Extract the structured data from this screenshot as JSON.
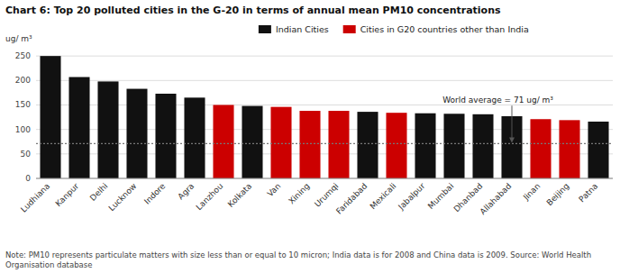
{
  "chart_data": {
    "type": "bar",
    "title": "Chart 6: Top 20 polluted cities in the G-20 in terms of annual mean PM10 concentrations",
    "y_label": "ug/ m³",
    "note": "Note: PM10 represents particulate matters with size less than or equal to 10 micron; India data is for 2008 and China data is 2009. Source: World Health Organisation database",
    "categories": [
      "Ludhiana",
      "Kanpur",
      "Delhi",
      "Lucknow",
      "Indore",
      "Agra",
      "Lanzhou",
      "Kolkata",
      "Van",
      "Xining",
      "Urumqi",
      "Faridabad",
      "Mexicali",
      "Jabalpur",
      "Mumbai",
      "Dhanbad",
      "Allahabad",
      "Jinan",
      "Beijing",
      "Patna"
    ],
    "values": [
      250,
      207,
      198,
      183,
      173,
      165,
      150,
      148,
      146,
      138,
      138,
      136,
      134,
      133,
      132,
      131,
      127,
      121,
      119,
      116
    ],
    "colors": [
      "#111111",
      "#111111",
      "#111111",
      "#111111",
      "#111111",
      "#111111",
      "#cc0000",
      "#111111",
      "#cc0000",
      "#cc0000",
      "#cc0000",
      "#111111",
      "#cc0000",
      "#111111",
      "#111111",
      "#111111",
      "#111111",
      "#cc0000",
      "#cc0000",
      "#111111"
    ],
    "world_average": 71,
    "annotation": "World average = 71 ug/ m³",
    "legend_items": [
      {
        "name": "Indian Cities",
        "color": "#111111"
      },
      {
        "name": "Cities in G20 countries other than India",
        "color": "#cc0000"
      }
    ],
    "legend": "top",
    "ylim": [
      0,
      265
    ],
    "yticks": [
      0,
      50,
      100,
      150,
      200,
      250
    ],
    "grid": true
  }
}
